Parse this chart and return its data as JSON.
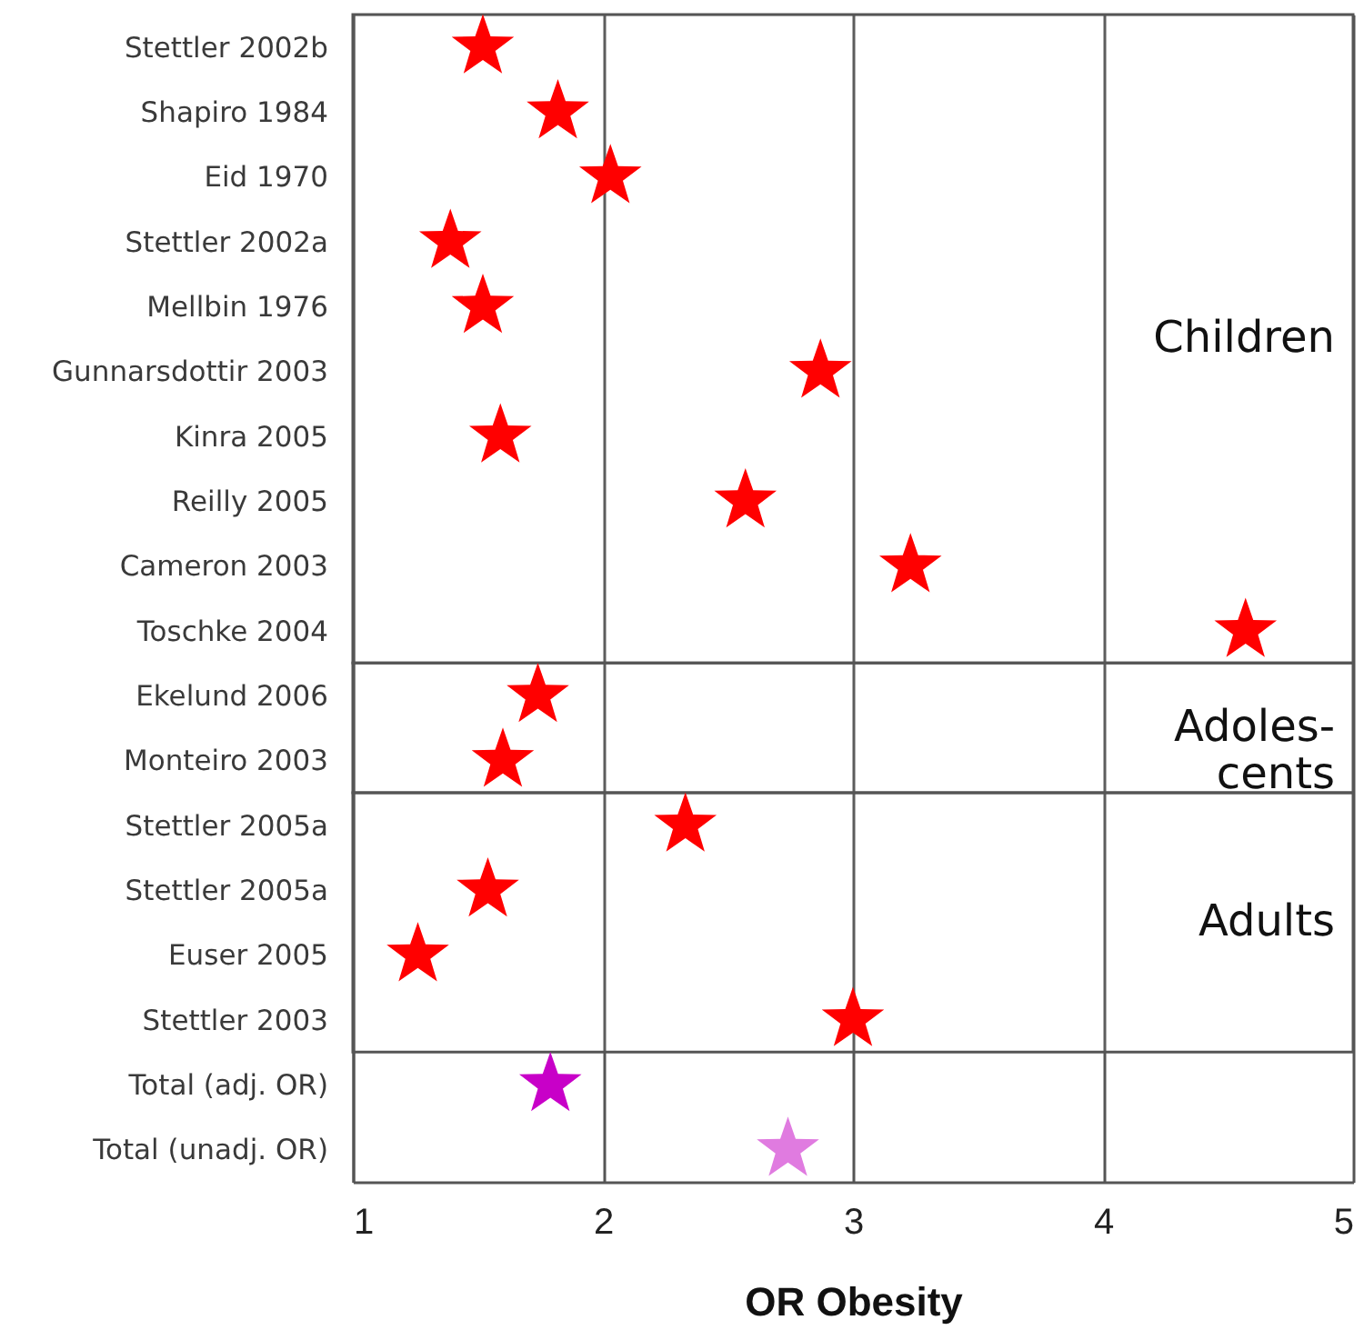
{
  "chart_data": {
    "type": "scatter",
    "orientation": "horizontal",
    "xlabel": "OR Obesity",
    "categories": [
      "Stettler 2002b",
      "Shapiro 1984",
      "Eid 1970",
      "Stettler 2002a",
      "Mellbin 1976",
      "Gunnarsdottir 2003",
      "Kinra 2005",
      "Reilly 2005",
      "Cameron 2003",
      "Toschke 2004",
      "Ekelund 2006",
      "Monteiro 2003",
      "Stettler 2005a",
      "Stettler 2005a",
      "Euser 2005",
      "Stettler 2003",
      "Total (adj. OR)",
      "Total (unadj. OR)"
    ],
    "values": [
      1.52,
      1.82,
      2.03,
      1.39,
      1.52,
      2.87,
      1.59,
      2.57,
      3.23,
      4.57,
      1.74,
      1.6,
      2.33,
      1.54,
      1.26,
      3.0,
      1.79,
      2.74
    ],
    "colors": [
      "#ff0000",
      "#ff0000",
      "#ff0000",
      "#ff0000",
      "#ff0000",
      "#ff0000",
      "#ff0000",
      "#ff0000",
      "#ff0000",
      "#ff0000",
      "#ff0000",
      "#ff0000",
      "#ff0000",
      "#ff0000",
      "#ff0000",
      "#ff0000",
      "#c800c8",
      "#e07be0"
    ],
    "xlim": [
      1,
      5
    ],
    "xticks": [
      1,
      2,
      3,
      4,
      5
    ],
    "grid": "x",
    "marker": "star",
    "bands": [
      {
        "axis": "y",
        "from": "Stettler 2002b",
        "to": "Toschke 2004",
        "label": "Children"
      },
      {
        "axis": "y",
        "from": "Ekelund 2006",
        "to": "Monteiro 2003",
        "label": "Adoles-\ncents"
      },
      {
        "axis": "y",
        "from": "Stettler 2005a",
        "to": "Stettler 2003",
        "label": "Adults"
      }
    ]
  }
}
